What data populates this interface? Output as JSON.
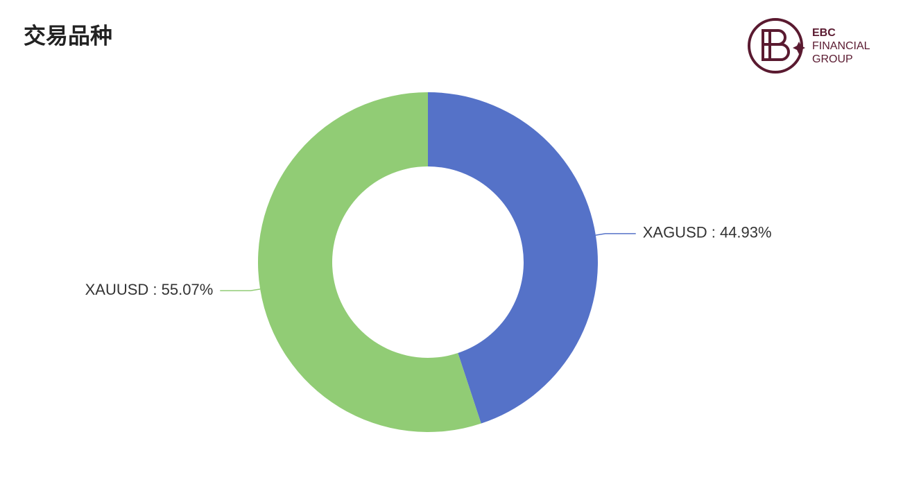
{
  "chart_data": {
    "type": "donut",
    "title": "交易品种",
    "categories": [
      "XAGUSD",
      "XAUUSD"
    ],
    "values": [
      44.93,
      55.07
    ],
    "value_labels": [
      "XAGUSD : 44.93%",
      "XAUUSD : 55.07%"
    ],
    "colors": [
      "#5572c8",
      "#91cc75"
    ]
  },
  "logo": {
    "lines": [
      "EBC",
      "FINANCIAL",
      "GROUP"
    ]
  }
}
